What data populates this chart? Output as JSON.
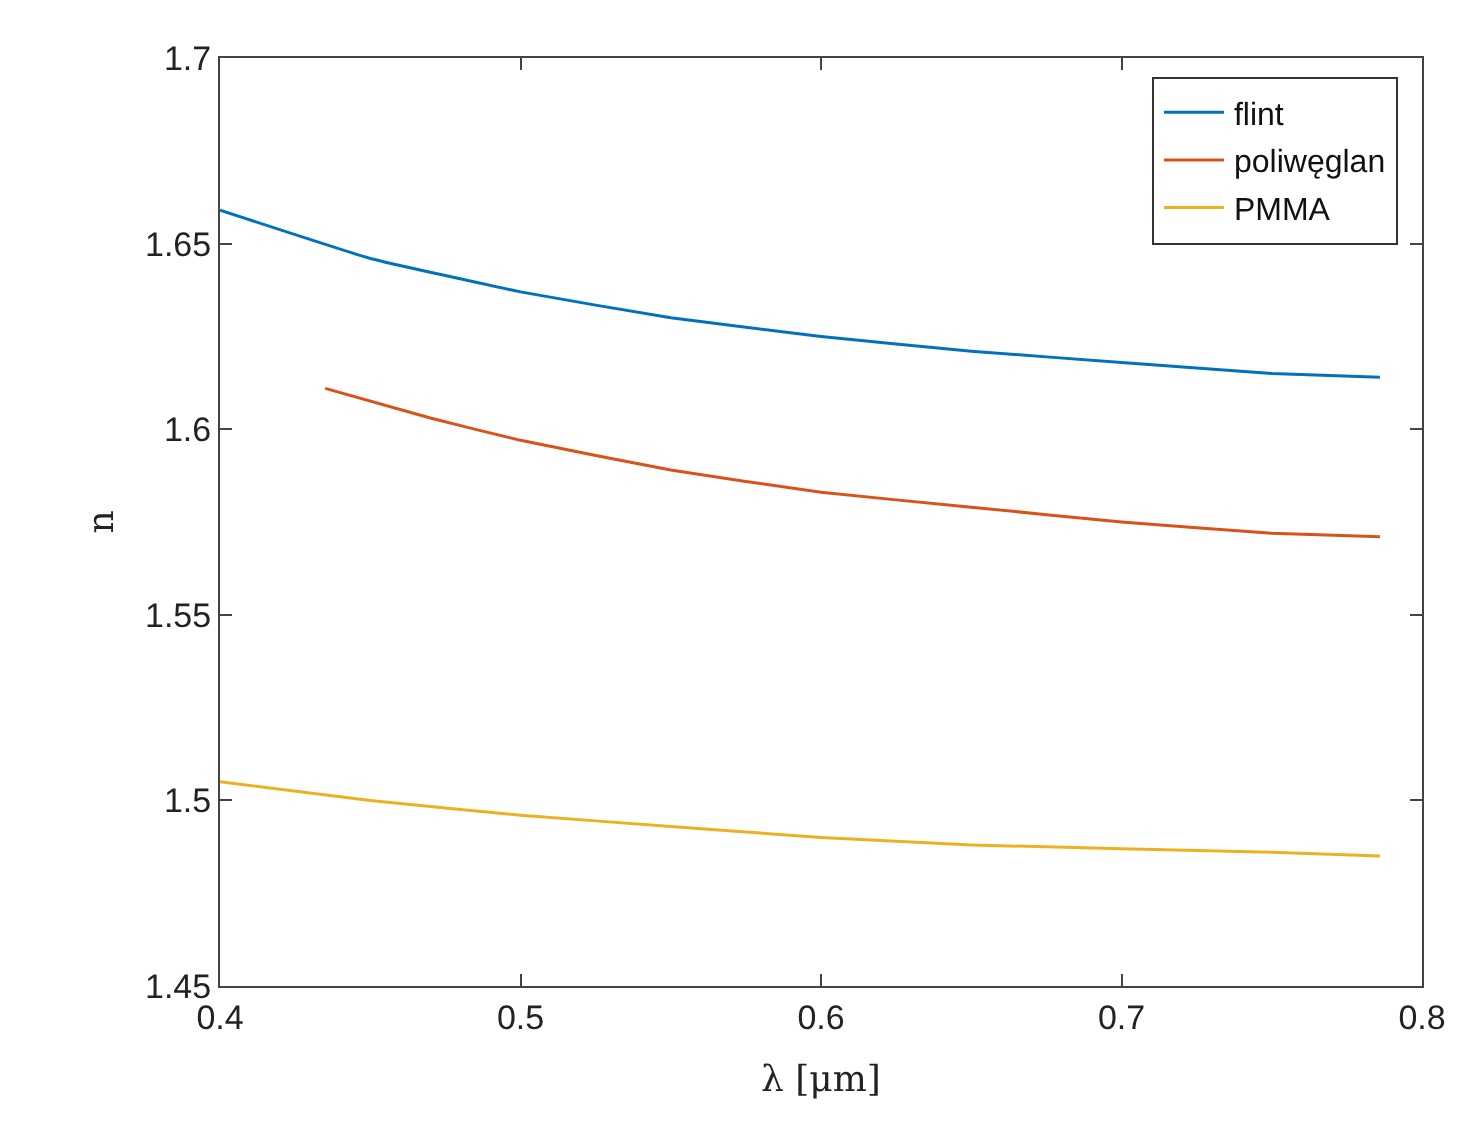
{
  "chart_data": {
    "type": "line",
    "xlabel": "λ [μm]",
    "ylabel": "n",
    "xlim": [
      0.4,
      0.8
    ],
    "xticks": [
      0.4,
      0.5,
      0.6,
      0.7,
      0.8
    ],
    "ylim": [
      1.45,
      1.7
    ],
    "yticks": [
      1.45,
      1.5,
      1.55,
      1.6,
      1.65,
      1.7
    ],
    "legend": "top right",
    "series": [
      {
        "name": "flint",
        "color": "#0072bd",
        "x": [
          0.4,
          0.45,
          0.5,
          0.55,
          0.6,
          0.65,
          0.7,
          0.75,
          0.786
        ],
        "values": [
          1.659,
          1.646,
          1.637,
          1.63,
          1.625,
          1.621,
          1.618,
          1.615,
          1.614
        ]
      },
      {
        "name": "poliwęglan",
        "color": "#d95319",
        "x": [
          0.435,
          0.47,
          0.5,
          0.55,
          0.6,
          0.65,
          0.7,
          0.75,
          0.786
        ],
        "values": [
          1.611,
          1.603,
          1.597,
          1.589,
          1.583,
          1.579,
          1.575,
          1.572,
          1.571
        ]
      },
      {
        "name": "PMMA",
        "color": "#edb120",
        "x": [
          0.4,
          0.45,
          0.5,
          0.55,
          0.6,
          0.65,
          0.7,
          0.75,
          0.786
        ],
        "values": [
          1.505,
          1.5,
          1.496,
          1.493,
          1.49,
          1.488,
          1.487,
          1.486,
          1.485
        ]
      }
    ]
  }
}
